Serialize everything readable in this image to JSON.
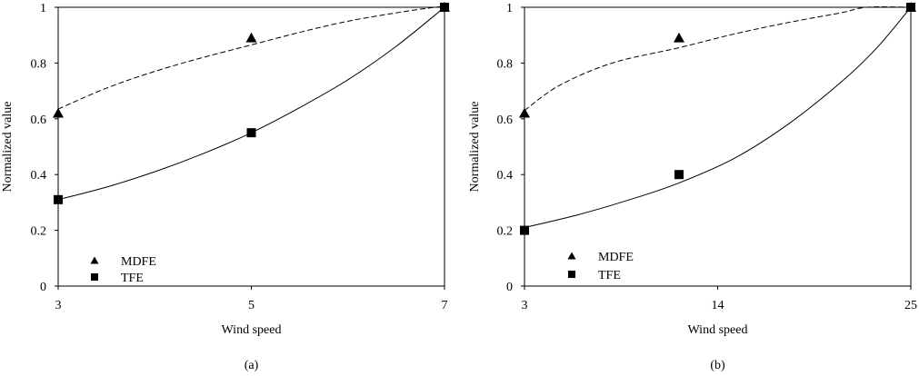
{
  "chart_data": [
    {
      "type": "scatter",
      "panel_label": "(a)",
      "xlabel": "Wind speed",
      "ylabel": "Normalized value",
      "xlim": [
        3,
        7
      ],
      "ylim": [
        0,
        1
      ],
      "x_ticks": [
        3,
        5,
        7
      ],
      "y_ticks": [
        0,
        0.2,
        0.4,
        0.6,
        0.8,
        1
      ],
      "x_tick_labels": [
        "3",
        "5",
        "7"
      ],
      "y_tick_labels": [
        "0",
        "0.2",
        "0.4",
        "0.6",
        "0.8",
        "1"
      ],
      "grid": false,
      "legend_position": "bottom-left",
      "series": [
        {
          "name": "MDFE",
          "marker": "triangle",
          "trend_style": "dashed",
          "x": [
            3,
            5,
            7
          ],
          "values": [
            0.62,
            0.89,
            1.0
          ],
          "trend_x": [
            3,
            3.5,
            4,
            4.5,
            5,
            5.5,
            6,
            6.5,
            6.9,
            7
          ],
          "trend_y": [
            0.635,
            0.71,
            0.77,
            0.82,
            0.865,
            0.91,
            0.95,
            0.98,
            1.0,
            1.0
          ]
        },
        {
          "name": "TFE",
          "marker": "square",
          "trend_style": "solid",
          "x": [
            3,
            5,
            7
          ],
          "values": [
            0.31,
            0.55,
            1.0
          ],
          "trend_x": [
            3,
            3.5,
            4,
            4.5,
            5,
            5.5,
            6,
            6.5,
            7
          ],
          "trend_y": [
            0.31,
            0.355,
            0.41,
            0.475,
            0.55,
            0.64,
            0.74,
            0.86,
            1.0
          ]
        }
      ]
    },
    {
      "type": "scatter",
      "panel_label": "(b)",
      "xlabel": "Wind speed",
      "ylabel": "Normalized value",
      "xlim": [
        3,
        25
      ],
      "ylim": [
        0,
        1
      ],
      "x_ticks": [
        3,
        14,
        25
      ],
      "y_ticks": [
        0,
        0.2,
        0.4,
        0.6,
        0.8,
        1
      ],
      "x_tick_labels": [
        "3",
        "14",
        "25"
      ],
      "y_tick_labels": [
        "0",
        "0.2",
        "0.4",
        "0.6",
        "0.8",
        "1"
      ],
      "grid": false,
      "legend_position": "bottom-left",
      "series": [
        {
          "name": "MDFE",
          "marker": "triangle",
          "trend_style": "dashed",
          "x": [
            3,
            11.8,
            25
          ],
          "values": [
            0.62,
            0.89,
            1.0
          ],
          "trend_x": [
            3,
            5,
            8,
            11.8,
            15,
            18,
            21,
            22.5,
            25
          ],
          "trend_y": [
            0.63,
            0.72,
            0.8,
            0.855,
            0.905,
            0.945,
            0.98,
            1.0,
            1.0
          ]
        },
        {
          "name": "TFE",
          "marker": "square",
          "trend_style": "solid",
          "x": [
            3,
            11.8,
            25
          ],
          "values": [
            0.2,
            0.4,
            1.0
          ],
          "trend_x": [
            3,
            6,
            9,
            11.8,
            15,
            18,
            21,
            23,
            25
          ],
          "trend_y": [
            0.21,
            0.255,
            0.31,
            0.37,
            0.46,
            0.58,
            0.73,
            0.85,
            1.0
          ]
        }
      ]
    }
  ]
}
